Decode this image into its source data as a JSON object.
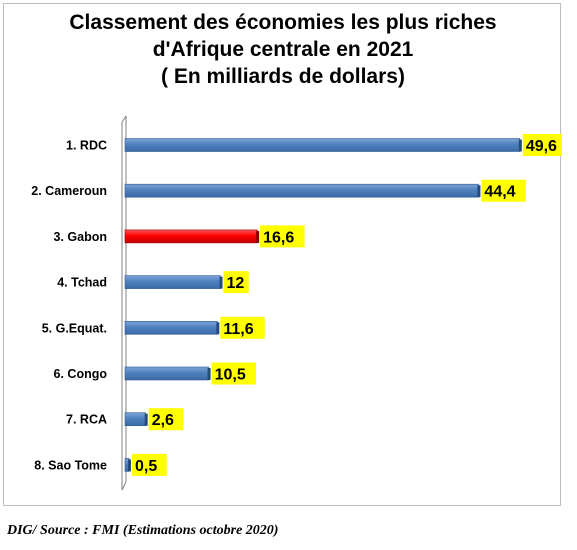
{
  "chart_data": {
    "type": "bar",
    "orientation": "horizontal",
    "title_lines": [
      "Classement des économies les plus riches",
      "d'Afrique centrale en 2021",
      "( En milliards de dollars)"
    ],
    "categories": [
      "1. RDC",
      "2. Cameroun",
      "3. Gabon",
      "4. Tchad",
      "5. G.Equat.",
      "6. Congo",
      "7. RCA",
      "8. Sao Tome"
    ],
    "value_labels": [
      "49,6",
      "44,4",
      "16,6",
      "12",
      "11,6",
      "10,5",
      "2,6",
      "0,5"
    ],
    "values": [
      49.6,
      44.4,
      16.6,
      12,
      11.6,
      10.5,
      2.6,
      0.5
    ],
    "highlight_index": 2,
    "xlim": [
      0,
      50
    ],
    "grid": false,
    "legend": "none",
    "colors": {
      "bar": "#4f81bd",
      "bar_highlight": "#ff0000",
      "label_background": "#ffff00"
    }
  },
  "source": "DIG/ Source : FMI (Estimations octobre 2020)"
}
